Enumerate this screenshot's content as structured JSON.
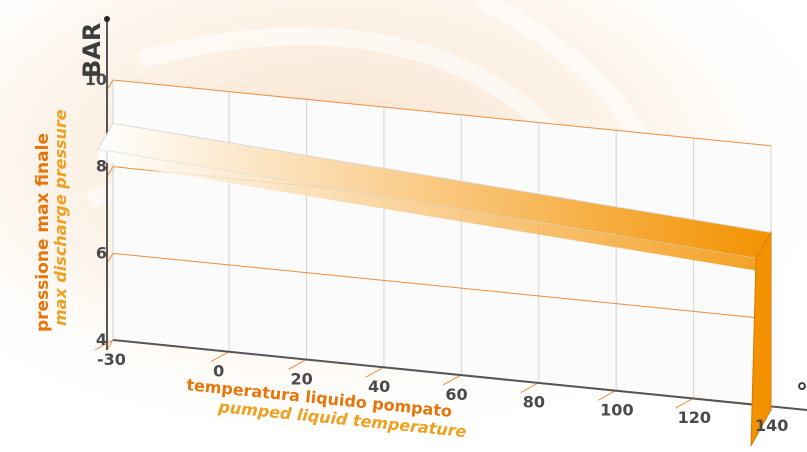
{
  "chart_data": {
    "type": "area",
    "y_unit": "BAR",
    "x_unit": "°C",
    "ylabel": "pressione max finale",
    "ylabel_en": "max discharge pressure",
    "xlabel": "temperatura liquido pompato",
    "xlabel_en": "pumped liquid temperature",
    "xlim": [
      -30,
      140
    ],
    "ylim": [
      4,
      10
    ],
    "x_ticks": [
      -30,
      0,
      20,
      40,
      60,
      80,
      100,
      120,
      140
    ],
    "x_tick_labels": [
      "-30",
      "0",
      "20",
      "40",
      "60",
      "80",
      "100",
      "120",
      "140"
    ],
    "y_ticks": [
      4,
      6,
      8,
      10
    ],
    "y_tick_labels": [
      "4",
      "6",
      "8",
      "10"
    ],
    "grid": true,
    "series": [
      {
        "x": [
          -30,
          140
        ],
        "y": [
          9,
          8
        ]
      }
    ],
    "colors": {
      "band_start": "#ffffff",
      "band_end": "#f39200",
      "grid_line": "#f08c3c",
      "axis": "#555555"
    }
  }
}
